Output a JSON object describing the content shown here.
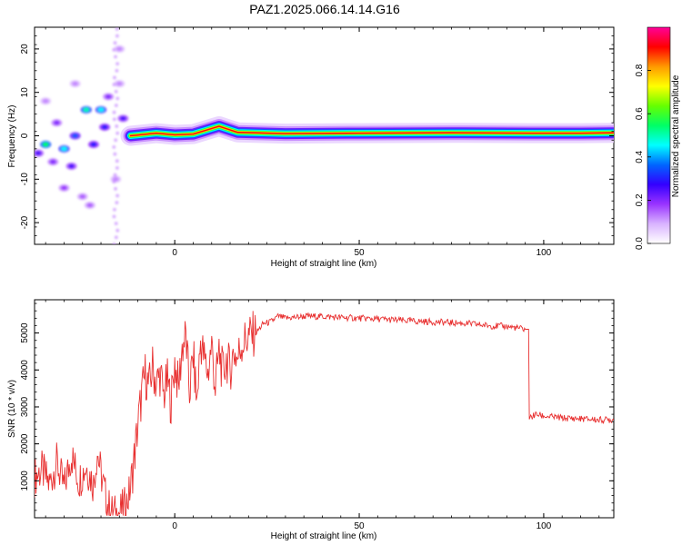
{
  "title": "PAZ1.2025.066.14.14.G16",
  "chart_data": [
    {
      "type": "heatmap",
      "xlabel": "Height of straight line (km)",
      "ylabel": "Frequency (Hz)",
      "xlim": [
        -38,
        119
      ],
      "ylim": [
        -25,
        25
      ],
      "xticks": [
        0,
        50,
        100
      ],
      "yticks": [
        -20,
        -10,
        0,
        10,
        20
      ],
      "colorbar": {
        "label": "Normalized spectral amplitude",
        "ticks": [
          "0.0",
          "0.2",
          "0.4",
          "0.6",
          "0.8"
        ],
        "range": [
          0,
          1
        ],
        "colors": [
          "#ffffff",
          "#d9b3ff",
          "#9933ff",
          "#3300ff",
          "#0066ff",
          "#00ffff",
          "#00ff66",
          "#66ff00",
          "#ffff00",
          "#ff9900",
          "#ff0000",
          "#ff0099"
        ]
      },
      "ridge": [
        {
          "x": -12,
          "f": 0.0
        },
        {
          "x": -5,
          "f": 0.6
        },
        {
          "x": 0,
          "f": 0.2
        },
        {
          "x": 5,
          "f": 0.4
        },
        {
          "x": 12,
          "f": 2.2
        },
        {
          "x": 17,
          "f": 0.8
        },
        {
          "x": 30,
          "f": 0.5
        },
        {
          "x": 50,
          "f": 0.6
        },
        {
          "x": 75,
          "f": 0.7
        },
        {
          "x": 97,
          "f": 0.6
        },
        {
          "x": 110,
          "f": 0.6
        },
        {
          "x": 119,
          "f": 0.7
        }
      ],
      "blobs": [
        {
          "x": -37,
          "f": -4,
          "v": 0.25
        },
        {
          "x": -35,
          "f": -2,
          "v": 0.55
        },
        {
          "x": -33,
          "f": -6,
          "v": 0.2
        },
        {
          "x": -30,
          "f": -3,
          "v": 0.45
        },
        {
          "x": -28,
          "f": -7,
          "v": 0.25
        },
        {
          "x": -32,
          "f": 3,
          "v": 0.2
        },
        {
          "x": -27,
          "f": 0,
          "v": 0.35
        },
        {
          "x": -24,
          "f": 6,
          "v": 0.5
        },
        {
          "x": -20,
          "f": 6,
          "v": 0.45
        },
        {
          "x": -22,
          "f": -2,
          "v": 0.3
        },
        {
          "x": -18,
          "f": 9,
          "v": 0.2
        },
        {
          "x": -19,
          "f": 2,
          "v": 0.3
        },
        {
          "x": -14,
          "f": 4,
          "v": 0.25
        },
        {
          "x": -30,
          "f": -12,
          "v": 0.18
        },
        {
          "x": -25,
          "f": -14,
          "v": 0.15
        },
        {
          "x": -23,
          "f": -16,
          "v": 0.15
        },
        {
          "x": -15,
          "f": 20,
          "v": 0.12
        },
        {
          "x": -16,
          "f": -10,
          "v": 0.12
        },
        {
          "x": -15,
          "f": 12,
          "v": 0.12
        },
        {
          "x": -35,
          "f": 8,
          "v": 0.12
        },
        {
          "x": -27,
          "f": 12,
          "v": 0.12
        }
      ]
    },
    {
      "type": "line",
      "xlabel": "Height of straight line (km)",
      "ylabel": "SNR (10 * v/v)",
      "xlim": [
        -38,
        119
      ],
      "ylim": [
        0,
        5900
      ],
      "xticks": [
        0,
        50,
        100
      ],
      "yticks": [
        1000,
        2000,
        3000,
        4000,
        5000
      ],
      "color": "#e83030",
      "series": [
        {
          "x": [
            -38,
            -36,
            -34,
            -32,
            -30,
            -28,
            -26,
            -24,
            -22,
            -21,
            -20,
            -19,
            -18,
            -17,
            -16,
            -15,
            -14,
            -13,
            -12,
            -11,
            -10,
            -9,
            -8,
            -7,
            -6,
            -5,
            -4,
            -3,
            -2,
            -1,
            0,
            1,
            2,
            3,
            4,
            5,
            6,
            7,
            8,
            9,
            10,
            11,
            12,
            13,
            14,
            15,
            16,
            17,
            18,
            20,
            22,
            24,
            26,
            28,
            30,
            35,
            40,
            45,
            50,
            55,
            60,
            65,
            70,
            75,
            80,
            85,
            90,
            95,
            95.9,
            96.1,
            98,
            100,
            105,
            110,
            115,
            119
          ],
          "y": [
            1100,
            1300,
            900,
            1500,
            800,
            1700,
            1000,
            1400,
            900,
            1800,
            1200,
            700,
            300,
            150,
            100,
            150,
            250,
            400,
            800,
            1600,
            2500,
            3300,
            3900,
            3500,
            4100,
            3600,
            3900,
            3300,
            3700,
            3100,
            4200,
            3500,
            4600,
            4900,
            3400,
            4400,
            3100,
            4800,
            4300,
            3900,
            4700,
            3500,
            4500,
            3900,
            4300,
            4000,
            4500,
            4300,
            4700,
            4900,
            5000,
            5250,
            5300,
            5450,
            5400,
            5450,
            5450,
            5420,
            5400,
            5380,
            5350,
            5320,
            5300,
            5280,
            5250,
            5200,
            5180,
            5100,
            5100,
            2700,
            2800,
            2750,
            2700,
            2680,
            2650,
            2650
          ]
        }
      ]
    }
  ]
}
